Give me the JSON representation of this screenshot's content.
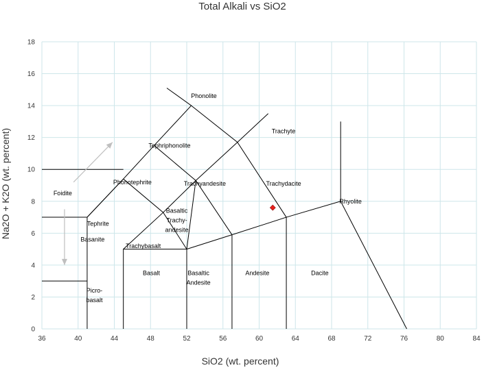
{
  "chart_data": {
    "type": "scatter",
    "title": "Total Alkali vs SiO2",
    "xlabel": "SiO2 (wt. percent)",
    "ylabel": "Na2O + K2O (wt. percent)",
    "xlim": [
      36,
      84
    ],
    "ylim": [
      0,
      18
    ],
    "xticks": [
      36,
      40,
      44,
      48,
      52,
      56,
      60,
      64,
      68,
      72,
      76,
      80,
      84
    ],
    "yticks": [
      0,
      2,
      4,
      6,
      8,
      10,
      12,
      14,
      16,
      18
    ],
    "grid": true,
    "points": [
      {
        "x": 61.5,
        "y": 7.6,
        "color": "#e8201c"
      }
    ],
    "fields": [
      {
        "name": "Phonolite",
        "x": 53.9,
        "y": 14.6
      },
      {
        "name": "Trachyte",
        "x": 62.7,
        "y": 12.4
      },
      {
        "name": "Tephriphonolite",
        "x": 50.1,
        "y": 11.5
      },
      {
        "name": "Foidite",
        "x": 38.3,
        "y": 8.5
      },
      {
        "name": "Phonotephrite",
        "x": 46.0,
        "y": 9.2
      },
      {
        "name": "Trachyandesite",
        "x": 54.0,
        "y": 9.1
      },
      {
        "name": "Trachydacite",
        "x": 62.7,
        "y": 9.1
      },
      {
        "name": "Rhyolite",
        "x": 70.1,
        "y": 8.0
      },
      {
        "name": "Tephrite",
        "x": 42.2,
        "y": 6.6
      },
      {
        "name": "Basanite",
        "x": 41.6,
        "y": 5.6
      },
      {
        "name": "Basaltic",
        "x": 50.9,
        "y": 7.4
      },
      {
        "name": "Trachy-",
        "x": 50.9,
        "y": 6.8
      },
      {
        "name": "andesite",
        "x": 50.9,
        "y": 6.2
      },
      {
        "name": "Trachybasalt",
        "x": 47.2,
        "y": 5.2
      },
      {
        "name": "Basalt",
        "x": 48.1,
        "y": 3.5
      },
      {
        "name": "Basaltic",
        "x": 53.3,
        "y": 3.5
      },
      {
        "name": "Andesite",
        "x": 53.3,
        "y": 2.9
      },
      {
        "name": "Andesite",
        "x": 59.8,
        "y": 3.5
      },
      {
        "name": "Dacite",
        "x": 66.7,
        "y": 3.5
      },
      {
        "name": "Picro-",
        "x": 41.8,
        "y": 2.4
      },
      {
        "name": "basalt",
        "x": 41.8,
        "y": 1.8
      }
    ],
    "boundaries": [
      [
        [
          41,
          0
        ],
        [
          41,
          7
        ],
        [
          45,
          9.4
        ],
        [
          48.4,
          11.5
        ],
        [
          52.5,
          14
        ],
        [
          49.8,
          15.1
        ]
      ],
      [
        [
          45,
          0
        ],
        [
          45,
          5
        ],
        [
          52,
          5
        ],
        [
          52,
          0
        ]
      ],
      [
        [
          57,
          0
        ],
        [
          57,
          5.9
        ],
        [
          63,
          7
        ],
        [
          63,
          0
        ]
      ],
      [
        [
          52,
          5
        ],
        [
          57,
          5.9
        ]
      ],
      [
        [
          63,
          7
        ],
        [
          69,
          8
        ],
        [
          69,
          13
        ]
      ],
      [
        [
          69,
          8
        ],
        [
          76.3,
          0
        ]
      ],
      [
        [
          45,
          5
        ],
        [
          49.4,
          7.3
        ],
        [
          53,
          9.3
        ],
        [
          57.6,
          11.7
        ],
        [
          61,
          13.5
        ]
      ],
      [
        [
          52,
          5
        ],
        [
          53,
          9.3
        ]
      ],
      [
        [
          41,
          7
        ],
        [
          45,
          9.4
        ]
      ],
      [
        [
          45,
          9.4
        ],
        [
          49.4,
          7.3
        ],
        [
          52,
          5
        ]
      ],
      [
        [
          48.4,
          11.5
        ],
        [
          53,
          9.3
        ],
        [
          57,
          5.9
        ]
      ],
      [
        [
          52.5,
          14
        ],
        [
          57.6,
          11.7
        ],
        [
          63,
          7
        ]
      ],
      [
        [
          36,
          10
        ],
        [
          45,
          10
        ]
      ],
      [
        [
          36,
          7
        ],
        [
          41,
          7
        ]
      ],
      [
        [
          36,
          3
        ],
        [
          41,
          3
        ]
      ]
    ],
    "arrows": [
      {
        "from": [
          39.5,
          9.2
        ],
        "to": [
          43.8,
          11.7
        ]
      },
      {
        "from": [
          38.5,
          7.5
        ],
        "to": [
          38.5,
          4
        ]
      }
    ]
  }
}
